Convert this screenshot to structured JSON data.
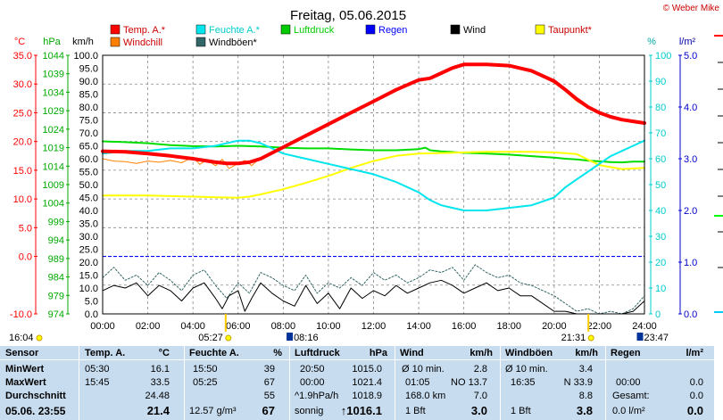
{
  "title": "Freitag, 05.06.2015",
  "copyright": "© Weber Mike",
  "unit_labels": {
    "temp": "°C",
    "hpa": "hPa",
    "kmh": "km/h",
    "pct": "%",
    "rain": "l/m²"
  },
  "legend": [
    {
      "label": "Temp. A.*",
      "color": "#ff0000"
    },
    {
      "label": "Feuchte A.*",
      "color": "#00e5ee"
    },
    {
      "label": "Luftdruck",
      "color": "#00cc00"
    },
    {
      "label": "Regen",
      "color": "#0000ff"
    },
    {
      "label": "Wind",
      "color": "#000000"
    },
    {
      "label": "Taupunkt*",
      "color": "#ffff00"
    },
    {
      "label": "Windchill",
      "color": "#ff8000"
    },
    {
      "label": "Windböen*",
      "color": "#336666"
    }
  ],
  "sun": {
    "sunrise": "05:27",
    "sunset": "21:31",
    "moonrise": "08:16",
    "moonset": "23:47",
    "left_time": "16:04"
  },
  "chart_data": {
    "type": "line",
    "title": "Freitag, 05.06.2015",
    "x_range_hours": [
      0,
      24
    ],
    "x_ticks": [
      "00:00",
      "02:00",
      "04:00",
      "06:00",
      "08:00",
      "10:00",
      "12:00",
      "14:00",
      "16:00",
      "18:00",
      "20:00",
      "22:00",
      "24:00"
    ],
    "axes": {
      "temp_c": {
        "range": [
          -10,
          35
        ],
        "ticks": [
          "35.0",
          "30.0",
          "25.0",
          "20.0",
          "15.0",
          "10.0",
          "5.0",
          "0.0",
          "-10.0"
        ],
        "color": "#ff0000"
      },
      "pressure_hpa": {
        "range": [
          974,
          1044
        ],
        "ticks": [
          "1044",
          "1039",
          "1034",
          "1029",
          "1024",
          "1019",
          "1014",
          "1009",
          "1004",
          "999",
          "994",
          "989",
          "984",
          "979",
          "974"
        ],
        "color": "#00cc00"
      },
      "wind_kmh": {
        "range": [
          0,
          100
        ],
        "ticks": [
          "100.0",
          "95.0",
          "90.0",
          "85.0",
          "80.0",
          "75.0",
          "70.0",
          "65.0",
          "60.0",
          "55.0",
          "50.0",
          "45.0",
          "40.0",
          "35.0",
          "30.0",
          "25.0",
          "20.0",
          "15.0",
          "10.0",
          "5.0",
          "0.0"
        ],
        "color": "#000000"
      },
      "humidity_pct": {
        "range": [
          0,
          100
        ],
        "ticks": [
          "100",
          "90",
          "80",
          "70",
          "60",
          "50",
          "40",
          "30",
          "20",
          "10",
          "0"
        ],
        "color": "#00cccc"
      },
      "rain_lm2": {
        "range": [
          0,
          5
        ],
        "ticks": [
          "5.0",
          "4.0",
          "3.0",
          "2.0",
          "1.0",
          "0.0"
        ],
        "color": "#0000cc"
      }
    },
    "series": [
      {
        "name": "Temp. A.*",
        "axis": "temp_c",
        "color": "#ff0000",
        "width": 4,
        "x": [
          0,
          1,
          2,
          3,
          4,
          5,
          5.5,
          6,
          6.5,
          7,
          8,
          9,
          10,
          11,
          12,
          13,
          14,
          14.5,
          15,
          15.5,
          16,
          17,
          18,
          19,
          20,
          20.5,
          21,
          21.5,
          22,
          22.5,
          23,
          23.5,
          24
        ],
        "y": [
          18.3,
          18.2,
          17.9,
          17.5,
          17.0,
          16.4,
          16.2,
          16.2,
          16.4,
          17.0,
          19.0,
          21.0,
          23.0,
          25.0,
          27.0,
          29.0,
          30.7,
          31.0,
          31.9,
          32.8,
          33.4,
          33.4,
          33.2,
          32.3,
          30.5,
          29.0,
          27.4,
          26.0,
          25.0,
          24.3,
          23.8,
          23.5,
          23.2
        ]
      },
      {
        "name": "Windchill",
        "axis": "temp_c",
        "color": "#ff8000",
        "width": 1,
        "x": [
          0,
          0.5,
          1,
          1.5,
          2,
          2.5,
          3,
          3.5,
          4,
          4.3,
          4.6,
          5,
          5.3,
          5.6,
          6,
          6.3,
          6.6,
          7,
          7.5,
          8,
          9,
          10,
          11,
          12,
          13,
          14,
          14.5,
          15,
          15.5,
          16,
          17,
          18,
          19,
          20,
          20.5,
          21,
          21.5,
          22,
          22.5,
          23,
          23.5,
          24
        ],
        "y": [
          17.0,
          16.6,
          16.5,
          16.2,
          16.6,
          16.4,
          16.7,
          16.3,
          17.3,
          16.0,
          16.8,
          15.8,
          16.9,
          15.3,
          16.2,
          16.7,
          15.8,
          17.2,
          17.9,
          19.0,
          21.0,
          22.9,
          24.9,
          27.0,
          28.9,
          30.6,
          31.0,
          31.8,
          32.6,
          33.4,
          33.4,
          33.2,
          32.2,
          30.2,
          28.7,
          27.0,
          25.8,
          24.8,
          24.2,
          23.7,
          23.4,
          23.1
        ]
      },
      {
        "name": "Feuchte A.*",
        "axis": "humidity_pct",
        "color": "#00e5ee",
        "width": 2,
        "x": [
          0,
          1,
          2,
          3,
          4,
          5,
          6,
          6.5,
          7,
          7.5,
          8,
          9,
          10,
          11,
          12,
          13,
          14,
          14.5,
          15,
          15.5,
          16,
          17,
          18,
          19,
          20,
          20.5,
          21,
          21.5,
          22,
          22.5,
          23,
          23.5,
          24
        ],
        "y": [
          62,
          63,
          63,
          64,
          64,
          65,
          67,
          67,
          66,
          64,
          62,
          60,
          58,
          56,
          54,
          51,
          47,
          44,
          42,
          41,
          40,
          40,
          41,
          42,
          45,
          49,
          52,
          55,
          58,
          61,
          63,
          65,
          67
        ]
      },
      {
        "name": "Luftdruck",
        "axis": "pressure_hpa",
        "color": "#00dd00",
        "width": 2,
        "x": [
          0,
          1,
          2,
          3,
          4,
          5,
          6,
          7,
          8,
          9,
          10,
          11,
          12,
          13,
          14,
          14.3,
          14.5,
          15,
          16,
          17,
          18,
          19,
          20,
          20.5,
          21,
          21.5,
          22,
          22.5,
          23,
          23.5,
          24
        ],
        "y": [
          1020.7,
          1020.5,
          1020.2,
          1019.7,
          1019.4,
          1019.3,
          1019.5,
          1019.3,
          1019.0,
          1018.8,
          1018.8,
          1018.5,
          1018.3,
          1018.3,
          1018.6,
          1019.0,
          1018.3,
          1018.0,
          1017.6,
          1017.4,
          1017.1,
          1016.7,
          1016.3,
          1016.0,
          1015.8,
          1015.5,
          1015.3,
          1015.1,
          1015.0,
          1015.2,
          1015.2
        ]
      },
      {
        "name": "Taupunkt*",
        "axis": "temp_c",
        "color": "#ffff00",
        "width": 2,
        "x": [
          0,
          1,
          2,
          3,
          4,
          5,
          6,
          6.5,
          7,
          8,
          9,
          10,
          11,
          12,
          13,
          14,
          15,
          16,
          17,
          18,
          19,
          20,
          21,
          22,
          23,
          24
        ],
        "y": [
          10.6,
          10.6,
          10.6,
          10.5,
          10.4,
          10.3,
          10.2,
          10.4,
          10.8,
          11.7,
          12.8,
          14.0,
          15.4,
          16.6,
          17.5,
          17.9,
          18.0,
          18.1,
          18.2,
          18.2,
          18.2,
          18.1,
          17.8,
          15.9,
          15.2,
          15.4
        ]
      },
      {
        "name": "Windböen*",
        "axis": "wind_kmh",
        "color": "#336666",
        "width": 1,
        "dash": "2,2",
        "x": [
          0,
          0.5,
          1,
          1.5,
          2,
          2.5,
          3,
          3.5,
          4,
          4.5,
          5,
          5.5,
          6,
          6.5,
          7,
          7.5,
          8,
          8.5,
          9,
          9.5,
          10,
          10.5,
          11,
          11.5,
          12,
          12.5,
          13,
          13.5,
          14,
          14.5,
          15,
          15.5,
          16,
          16.5,
          17,
          17.5,
          18,
          18.5,
          19,
          19.5,
          20,
          20.5,
          21,
          21.5,
          22,
          22.5,
          23,
          23.5,
          24
        ],
        "y": [
          14,
          18,
          13,
          15,
          11,
          16,
          13,
          9,
          15,
          17,
          11,
          6,
          12,
          8,
          16,
          14,
          11,
          9,
          15,
          8,
          12,
          10,
          14,
          11,
          16,
          13,
          15,
          12,
          14,
          17,
          16,
          18,
          13,
          19,
          16,
          14,
          15,
          12,
          11,
          9,
          7,
          4,
          1,
          2,
          0,
          1,
          0,
          2,
          7
        ]
      },
      {
        "name": "Wind",
        "axis": "wind_kmh",
        "color": "#000000",
        "width": 1,
        "x": [
          0,
          0.5,
          1,
          1.5,
          2,
          2.5,
          3,
          3.5,
          4,
          4.5,
          5,
          5.3,
          5.6,
          6,
          6.3,
          6.6,
          7,
          7.5,
          8,
          8.5,
          9,
          9.5,
          10,
          10.5,
          11,
          11.5,
          12,
          12.5,
          13,
          13.5,
          14,
          14.5,
          15,
          15.5,
          16,
          16.5,
          17,
          17.5,
          18,
          18.5,
          19,
          19.5,
          20,
          20.5,
          21,
          21.5,
          22,
          22.5,
          23,
          23.5,
          24
        ],
        "y": [
          9,
          11,
          10,
          12,
          7,
          11,
          9,
          5,
          10,
          12,
          6,
          2,
          7,
          9,
          1,
          6,
          12,
          8,
          5,
          3,
          11,
          4,
          8,
          2,
          10,
          6,
          9,
          7,
          11,
          8,
          10,
          12,
          13,
          11,
          8,
          10,
          12,
          9,
          10,
          7,
          7,
          4,
          1,
          1,
          0,
          0,
          0,
          0,
          0,
          1,
          5
        ]
      }
    ],
    "rain_total": 0.0
  },
  "stats": {
    "headers": {
      "sensor": "Sensor",
      "temp": "Temp. A.",
      "temp_unit": "°C",
      "hum": "Feuchte A.",
      "hum_unit": "%",
      "press": "Luftdruck",
      "press_unit": "hPa",
      "wind": "Wind",
      "wind_unit": "km/h",
      "gust": "Windböen",
      "gust_unit": "km/h",
      "rain": "Regen",
      "rain_unit": "l/m²"
    },
    "row_labels": [
      "MinWert",
      "MaxWert",
      "Durchschnitt"
    ],
    "current_label": "05.06. 23:55",
    "temp": {
      "min_t": "05:30",
      "min_v": "16.1",
      "max_t": "15:45",
      "max_v": "33.5",
      "avg": "24.48",
      "cur": "21.4"
    },
    "hum": {
      "min_t": "15:50",
      "min_v": "39",
      "max_t": "05:25",
      "max_v": "67",
      "avg": "55",
      "abs": "12.57 g/m³",
      "cur": "67"
    },
    "press": {
      "min_t": "20:50",
      "min_v": "1015.0",
      "max_t": "00:00",
      "max_v": "1021.4",
      "trend": "^1.9hPa/h",
      "avg": "1018.9",
      "weather": "sonnig",
      "cur": "↑1016.1"
    },
    "wind": {
      "r1a": "Ø 10 min.",
      "r1v": "2.8",
      "r2a": "01:05",
      "r2b": "NO 13.7",
      "r3a": "168.0 km",
      "r3v": "7.0",
      "bft": "1 Bft",
      "cur": "3.0"
    },
    "gust": {
      "r1a": "Ø 10 min.",
      "r1v": "3.4",
      "r2a": "16:35",
      "r2b": "N 33.9",
      "r3v": "8.8",
      "bft": "1 Bft",
      "cur": "3.8"
    },
    "rain": {
      "r2a": "00:00",
      "r2v": "0.0",
      "r3a": "Gesamt:",
      "r3v": "0.0",
      "cur_a": "0.0 l/m²",
      "cur": "0.0"
    }
  }
}
